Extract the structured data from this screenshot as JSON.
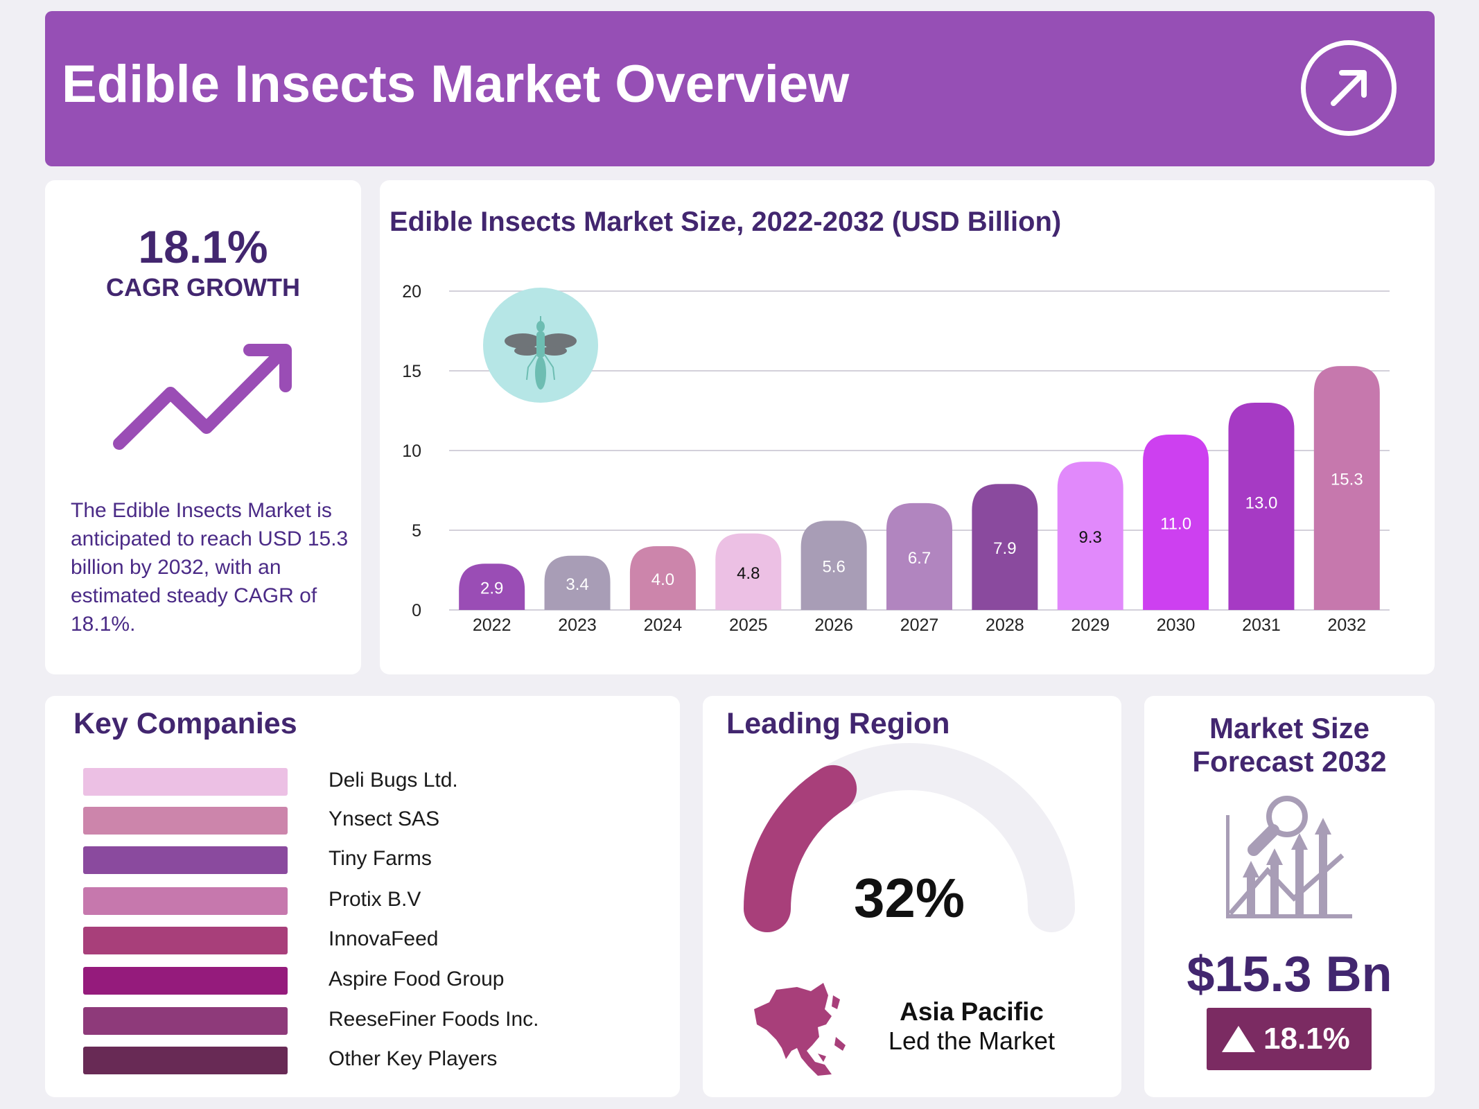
{
  "header": {
    "title": "Edible Insects Market Overview",
    "icon": "arrow-up-right-icon"
  },
  "cagr": {
    "value": "18.1%",
    "label": "CAGR GROWTH",
    "icon": "trend-up-arrow-icon",
    "description": "The Edible Insects Market is anticipated to reach USD 15.3 billion by 2032, with an estimated steady CAGR of 18.1%."
  },
  "chart_data": {
    "type": "bar",
    "title": "Edible Insects Market Size, 2022-2032 (USD Billion)",
    "xlabel": "",
    "ylabel": "",
    "categories": [
      "2022",
      "2023",
      "2024",
      "2025",
      "2026",
      "2027",
      "2028",
      "2029",
      "2030",
      "2031",
      "2032"
    ],
    "values": [
      2.9,
      3.4,
      4.0,
      4.8,
      5.6,
      6.7,
      7.9,
      9.3,
      11.0,
      13.0,
      15.3
    ],
    "data_labels": [
      "2.9",
      "3.4",
      "4.0",
      "4.8",
      "5.6",
      "6.7",
      "7.9",
      "9.3",
      "11.0",
      "13.0",
      "15.3"
    ],
    "colors": [
      "#9a4db5",
      "#a89db6",
      "#cc85ab",
      "#ecc0e4",
      "#a89db6",
      "#b185bf",
      "#8a4a9e",
      "#e189fb",
      "#cd40f0",
      "#a63ac4",
      "#c678ad"
    ],
    "label_colors": [
      "#fff",
      "#fff",
      "#fff",
      "#111",
      "#fff",
      "#fff",
      "#fff",
      "#111",
      "#fff",
      "#fff",
      "#fff"
    ],
    "ylim": [
      0,
      20
    ],
    "yticks": [
      "0",
      "5",
      "10",
      "15",
      "20"
    ],
    "grid": true,
    "icon": "insect-icon"
  },
  "companies": {
    "title": "Key Companies",
    "items": [
      {
        "name": "Deli Bugs Ltd.",
        "color": "#ecc0e4"
      },
      {
        "name": "Ynsect SAS",
        "color": "#cc85ab"
      },
      {
        "name": "Tiny Farms",
        "color": "#8a4a9e"
      },
      {
        "name": "Protix B.V",
        "color": "#c678ad"
      },
      {
        "name": "InnovaFeed",
        "color": "#a83f7a"
      },
      {
        "name": "Aspire Food Group",
        "color": "#951b7c"
      },
      {
        "name": "ReeseFiner Foods Inc.",
        "color": "#8e3a7a"
      },
      {
        "name": "Other Key Players",
        "color": "#682a55"
      }
    ]
  },
  "region": {
    "title": "Leading Region",
    "share": "32%",
    "share_value": 32,
    "name": "Asia Pacific",
    "subtitle": "Led the Market",
    "gauge_color": "#a83f7a",
    "track_color": "#f0eff4"
  },
  "forecast": {
    "title_line1": "Market Size",
    "title_line2": "Forecast 2032",
    "value": "$15.3 Bn",
    "growth": "18.1%",
    "badge_color": "#7b2b62",
    "icon": "chart-magnifier-icon"
  }
}
